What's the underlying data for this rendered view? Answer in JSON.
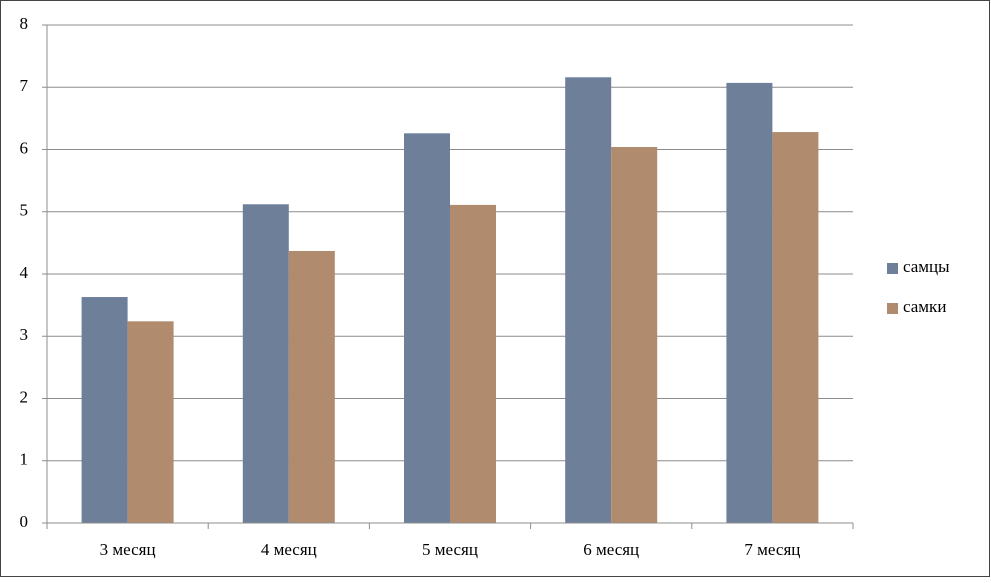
{
  "chart_data": {
    "type": "bar",
    "categories": [
      "3 месяц",
      "4 месяц",
      "5 месяц",
      "6 месяц",
      "7 месяц"
    ],
    "series": [
      {
        "name": "самцы",
        "color": "#6e7f9a",
        "values": [
          3.63,
          5.12,
          6.26,
          7.16,
          7.07
        ]
      },
      {
        "name": "самки",
        "color": "#b08b6e",
        "values": [
          3.24,
          4.37,
          5.11,
          6.04,
          6.28
        ]
      }
    ],
    "ylim": [
      0,
      8
    ],
    "yticks": [
      0,
      1,
      2,
      3,
      4,
      5,
      6,
      7,
      8
    ],
    "grid": true,
    "legend": "right"
  }
}
